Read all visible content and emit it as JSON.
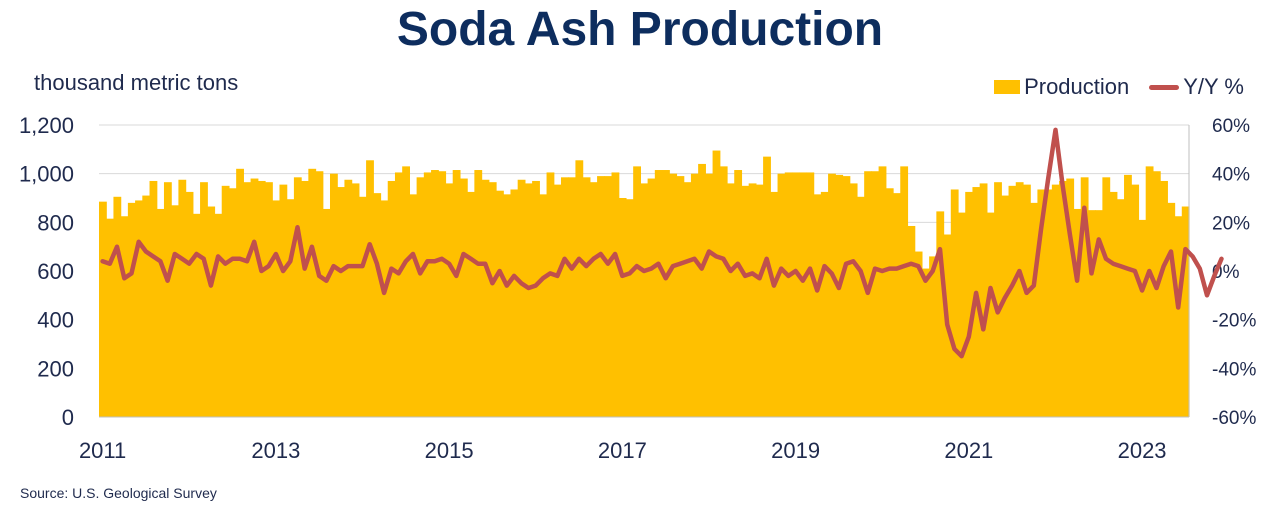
{
  "chart_data": {
    "type": "bar+line",
    "title": "Soda Ash Production",
    "ylabel": "thousand metric tons",
    "y_ticks": [
      "0",
      "200",
      "400",
      "600",
      "800",
      "1,000",
      "1,200"
    ],
    "ylim": [
      0,
      1200
    ],
    "y2_ticks": [
      "-60%",
      "-40%",
      "-20%",
      "0%",
      "20%",
      "40%",
      "60%"
    ],
    "y2lim": [
      -60,
      60
    ],
    "x_ticks": [
      "2011",
      "2013",
      "2015",
      "2017",
      "2019",
      "2021",
      "2023"
    ],
    "x_tick_year_values": [
      2011,
      2013,
      2015,
      2017,
      2019,
      2021,
      2023
    ],
    "start": "2011-01",
    "end": "2023-04",
    "colors": {
      "bars": "#ffc000",
      "line": "#c0504d",
      "grid": "#d9d9d9"
    },
    "grid": true,
    "legend_position": "top-right",
    "series": [
      {
        "name": "Production",
        "kind": "bar",
        "axis": "left",
        "values": [
          885,
          815,
          905,
          825,
          880,
          890,
          910,
          970,
          855,
          965,
          870,
          975,
          925,
          835,
          965,
          865,
          835,
          950,
          940,
          1020,
          965,
          980,
          970,
          965,
          890,
          955,
          895,
          985,
          970,
          1020,
          1010,
          855,
          1000,
          945,
          975,
          960,
          905,
          1055,
          920,
          890,
          970,
          1005,
          1030,
          915,
          985,
          1005,
          1015,
          1010,
          960,
          1015,
          980,
          925,
          1015,
          975,
          965,
          930,
          915,
          935,
          975,
          960,
          970,
          915,
          1005,
          955,
          985,
          985,
          1055,
          985,
          965,
          990,
          990,
          1005,
          900,
          895,
          1030,
          960,
          980,
          1015,
          1015,
          1000,
          990,
          965,
          1000,
          1040,
          1000,
          1095,
          1030,
          960,
          1015,
          950,
          960,
          955,
          1070,
          925,
          1000,
          1005,
          1005,
          1005,
          1005,
          915,
          925,
          1000,
          995,
          990,
          960,
          905,
          1010,
          1010,
          1030,
          940,
          920,
          1030,
          785,
          680,
          610,
          660,
          845,
          750,
          935,
          840,
          925,
          945,
          960,
          840,
          965,
          910,
          950,
          965,
          955,
          880,
          935,
          935,
          955,
          970,
          980,
          855,
          985,
          850,
          850,
          985,
          925,
          895,
          995,
          955,
          810,
          1030,
          1010,
          970,
          880,
          825,
          865
        ]
      },
      {
        "name": "Y/Y %",
        "kind": "line",
        "axis": "right",
        "values": [
          4,
          3,
          10,
          -3,
          -1,
          12,
          8,
          6,
          4,
          -4,
          7,
          5,
          3,
          7,
          5,
          -6,
          6,
          3,
          5,
          5,
          4,
          12,
          0,
          2,
          7,
          0,
          4,
          18,
          1,
          10,
          -2,
          -4,
          2,
          0,
          2,
          2,
          2,
          11,
          3,
          -9,
          1,
          -1,
          4,
          7,
          -1,
          4,
          4,
          5,
          3,
          -2,
          7,
          5,
          3,
          3,
          -5,
          0,
          -6,
          -2,
          -5,
          -7,
          -6,
          -3,
          -1,
          -2,
          5,
          1,
          5,
          2,
          5,
          7,
          3,
          7,
          -2,
          -1,
          2,
          0,
          1,
          3,
          -3,
          2,
          3,
          4,
          5,
          1,
          8,
          6,
          5,
          0,
          3,
          -2,
          -1,
          -3,
          5,
          -6,
          1,
          -2,
          0,
          -4,
          1,
          -8,
          2,
          -1,
          -7,
          3,
          4,
          0,
          -9,
          1,
          0,
          1,
          1,
          2,
          3,
          2,
          -4,
          0,
          9,
          -22,
          -32,
          -35,
          -27,
          -9,
          -24,
          -7,
          -17,
          -11,
          -6,
          0,
          -9,
          -6,
          17,
          38,
          58,
          35,
          15,
          -4,
          26,
          -1,
          13,
          5,
          3,
          2,
          1,
          0,
          -8,
          0,
          -7,
          2,
          8,
          -15,
          9,
          6,
          1,
          -10,
          -2,
          5
        ]
      }
    ]
  },
  "source_text": "Source:   U.S. Geological Survey"
}
